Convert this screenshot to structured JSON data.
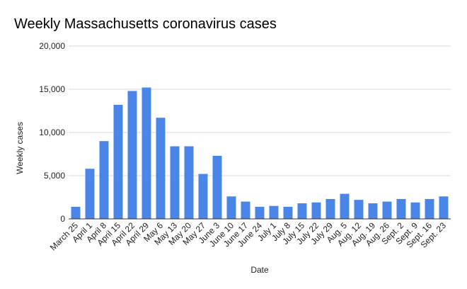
{
  "chart_data": {
    "type": "bar",
    "title": "Weekly Massachusetts coronavirus cases",
    "xlabel": "Date",
    "ylabel": "Weekly cases",
    "ylim": [
      0,
      20000
    ],
    "yticks": [
      0,
      5000,
      10000,
      15000,
      20000
    ],
    "ytick_labels": [
      "0",
      "5,000",
      "10,000",
      "15,000",
      "20,000"
    ],
    "grid": true,
    "legend": "none",
    "bar_color": "#4a86e8",
    "categories": [
      "March 25",
      "April 1",
      "April 8",
      "April 15",
      "April 22",
      "April 29",
      "May 6",
      "May 13",
      "May 20",
      "May 27",
      "June 3",
      "June 10",
      "June 17",
      "June 24",
      "July 1",
      "July 8",
      "July 15",
      "July 22",
      "July 29",
      "Aug. 5",
      "Aug. 12",
      "Aug. 19",
      "Aug. 26",
      "Sept. 2",
      "Sept. 9",
      "Sept. 16",
      "Sept. 23"
    ],
    "values": [
      1400,
      5800,
      9000,
      13200,
      14800,
      15200,
      11700,
      8400,
      8400,
      5200,
      7300,
      2600,
      2000,
      1400,
      1500,
      1400,
      1800,
      1900,
      2300,
      2900,
      2200,
      1800,
      2000,
      2300,
      1900,
      2300,
      2600
    ]
  }
}
